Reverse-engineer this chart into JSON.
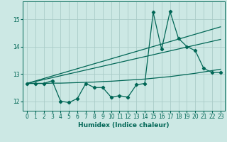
{
  "xlabel": "Humidex (Indice chaleur)",
  "xlim": [
    -0.5,
    23.5
  ],
  "ylim": [
    11.65,
    15.65
  ],
  "xticks": [
    0,
    1,
    2,
    3,
    4,
    5,
    6,
    7,
    8,
    9,
    10,
    11,
    12,
    13,
    14,
    15,
    16,
    17,
    18,
    19,
    20,
    21,
    22,
    23
  ],
  "yticks": [
    12,
    13,
    14,
    15
  ],
  "bg_color": "#cce8e4",
  "grid_color": "#aaccc8",
  "line_color": "#006655",
  "x_data": [
    0,
    1,
    2,
    3,
    4,
    5,
    6,
    7,
    8,
    9,
    10,
    11,
    12,
    13,
    14,
    15,
    16,
    17,
    18,
    19,
    20,
    21,
    22,
    23
  ],
  "y_main": [
    12.65,
    12.65,
    12.65,
    12.75,
    12.0,
    11.95,
    12.1,
    12.65,
    12.5,
    12.5,
    12.15,
    12.2,
    12.15,
    12.6,
    12.65,
    15.25,
    13.9,
    15.28,
    14.3,
    14.0,
    13.85,
    13.2,
    13.05,
    13.05
  ],
  "y_trend_flat": [
    12.65,
    12.65,
    12.65,
    12.66,
    12.66,
    12.67,
    12.68,
    12.69,
    12.7,
    12.72,
    12.73,
    12.75,
    12.77,
    12.79,
    12.81,
    12.84,
    12.87,
    12.9,
    12.94,
    12.98,
    13.02,
    13.07,
    13.12,
    13.17
  ],
  "y_trend_mid": [
    12.65,
    12.72,
    12.79,
    12.86,
    12.93,
    13.0,
    13.07,
    13.14,
    13.21,
    13.28,
    13.35,
    13.42,
    13.49,
    13.56,
    13.63,
    13.7,
    13.77,
    13.84,
    13.91,
    13.98,
    14.05,
    14.12,
    14.19,
    14.26
  ],
  "y_trend_steep": [
    12.65,
    12.74,
    12.83,
    12.92,
    13.01,
    13.1,
    13.19,
    13.28,
    13.37,
    13.46,
    13.55,
    13.64,
    13.73,
    13.82,
    13.91,
    14.0,
    14.09,
    14.18,
    14.27,
    14.36,
    14.45,
    14.54,
    14.63,
    14.72
  ]
}
